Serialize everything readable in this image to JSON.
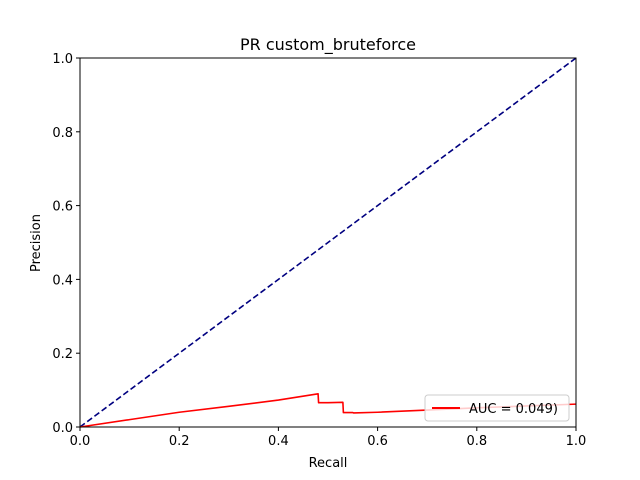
{
  "chart_data": {
    "type": "line",
    "title": "PR custom_bruteforce",
    "xlabel": "Recall",
    "ylabel": "Precision",
    "xlim": [
      0.0,
      1.0
    ],
    "ylim": [
      0.0,
      1.0
    ],
    "xticks": [
      "0.0",
      "0.2",
      "0.4",
      "0.6",
      "0.8",
      "1.0"
    ],
    "yticks": [
      "0.0",
      "0.2",
      "0.4",
      "0.6",
      "0.8",
      "1.0"
    ],
    "grid": false,
    "legend_position": "lower-right",
    "series": [
      {
        "name": "AUC = 0.049)",
        "color": "#ff0000",
        "style": "solid",
        "x": [
          0.0,
          0.1,
          0.2,
          0.3,
          0.4,
          0.48,
          0.481,
          0.5,
          0.53,
          0.531,
          0.55,
          0.552,
          0.6,
          0.7,
          0.8,
          0.9,
          1.0
        ],
        "y": [
          0.0,
          0.02,
          0.04,
          0.056,
          0.073,
          0.09,
          0.066,
          0.066,
          0.067,
          0.039,
          0.039,
          0.038,
          0.04,
          0.046,
          0.052,
          0.057,
          0.062
        ]
      },
      {
        "color": "#000080",
        "style": "dashed",
        "x": [
          0.0,
          1.0
        ],
        "y": [
          0.0,
          1.0
        ]
      }
    ]
  }
}
